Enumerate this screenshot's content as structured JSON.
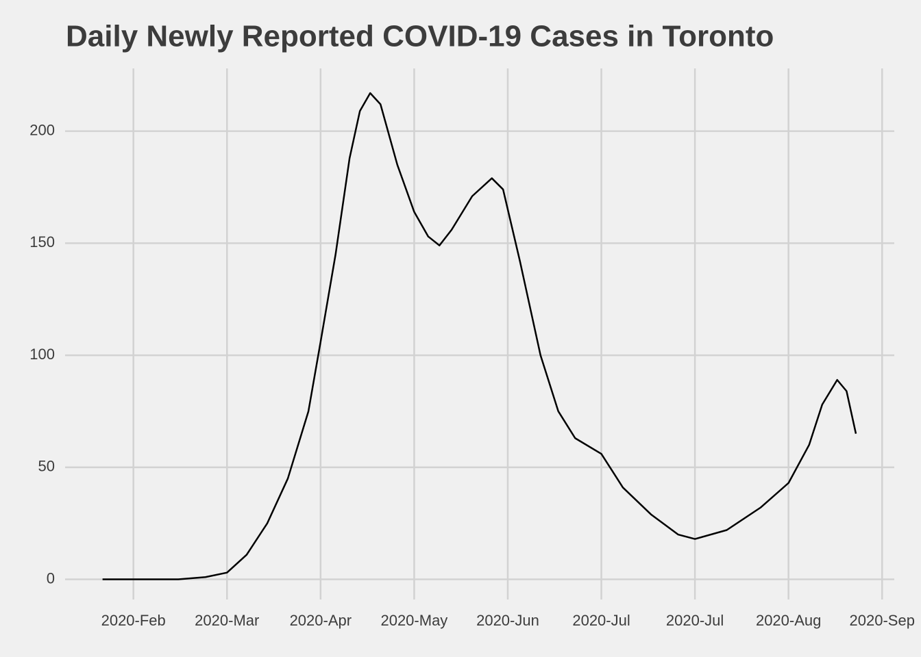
{
  "chart_data": {
    "type": "line",
    "title": "Daily Newly Reported COVID-19 Cases in Toronto",
    "x": [
      0.67,
      1,
      1.48,
      1.77,
      2,
      2.21,
      2.43,
      2.65,
      2.87,
      3,
      3.16,
      3.31,
      3.42,
      3.53,
      3.64,
      3.82,
      4,
      4.15,
      4.27,
      4.4,
      4.62,
      4.83,
      4.95,
      5.13,
      5.35,
      5.54,
      5.72,
      6,
      6.23,
      6.53,
      6.82,
      7,
      7.34,
      7.7,
      8,
      8.22,
      8.36,
      8.52,
      8.62,
      8.72
    ],
    "series": [
      {
        "color": "#000000",
        "values": [
          0,
          0,
          0,
          1,
          3,
          11,
          25,
          45,
          75,
          106,
          145,
          188,
          209,
          217,
          212,
          185,
          164,
          153,
          149,
          156,
          171,
          179,
          174,
          142,
          100,
          75,
          63,
          56,
          41,
          29,
          20,
          18,
          22,
          32,
          43,
          60,
          78,
          89,
          84,
          65
        ]
      }
    ],
    "xlim": [
      0.27,
      9.13
    ],
    "xticks": [
      {
        "value": 1,
        "label": "2020-Feb"
      },
      {
        "value": 2,
        "label": "2020-Mar"
      },
      {
        "value": 3,
        "label": "2020-Apr"
      },
      {
        "value": 4,
        "label": "2020-May"
      },
      {
        "value": 5,
        "label": "2020-Jun"
      },
      {
        "value": 6,
        "label": "2020-Jul"
      },
      {
        "value": 7,
        "label": "2020-Jul"
      },
      {
        "value": 8,
        "label": "2020-Aug"
      },
      {
        "value": 9,
        "label": "2020-Sep"
      }
    ],
    "ylim": [
      -9,
      228
    ],
    "yticks": [
      0,
      50,
      100,
      150,
      200
    ],
    "grid": true
  }
}
